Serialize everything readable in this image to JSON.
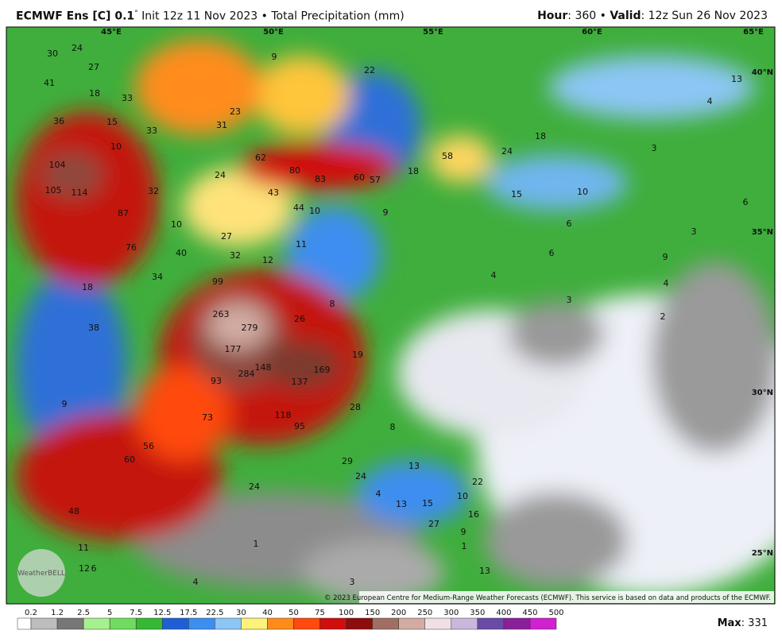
{
  "header": {
    "model": "ECMWF Ens [C] 0.1",
    "degree": "°",
    "init": " Init 12z 11 Nov 2023 • Total Precipitation (mm)",
    "hour_label": "Hour",
    "hour": ": 360 • ",
    "valid_label": "Valid",
    "valid": ": 12z Sun 26 Nov 2023"
  },
  "longitudes": [
    "45°E",
    "50°E",
    "55°E",
    "60°E",
    "65°E"
  ],
  "latitudes": [
    "40°N",
    "35°N",
    "30°N",
    "25°N"
  ],
  "map_labels": [
    30,
    24,
    27,
    41,
    18,
    33,
    36,
    15,
    33,
    10,
    31,
    23,
    62,
    80,
    83,
    60,
    57,
    18,
    58,
    24,
    18,
    22,
    9,
    104,
    105,
    114,
    87,
    32,
    24,
    43,
    44,
    10,
    9,
    15,
    10,
    3,
    4,
    13,
    6,
    3,
    6,
    6,
    4,
    9,
    4,
    3,
    2,
    10,
    27,
    40,
    32,
    12,
    11,
    76,
    34,
    99,
    18,
    38,
    263,
    279,
    26,
    8,
    177,
    19,
    148,
    169,
    284,
    93,
    137,
    9,
    28,
    73,
    118,
    95,
    8,
    56,
    60,
    29,
    13,
    24,
    24,
    22,
    4,
    10,
    13,
    15,
    48,
    16,
    27,
    1,
    11,
    9,
    1,
    12,
    6,
    13,
    4,
    3
  ],
  "copyright": "© 2023 European Centre for Medium-Range Weather Forecasts (ECMWF). This service is based on data and products of the ECMWF.",
  "watermark": "WeatherBELL",
  "colorbar": {
    "ticks": [
      0.2,
      1.2,
      2.5,
      5,
      7.5,
      12.5,
      17.5,
      22.5,
      30,
      40,
      50,
      75,
      100,
      150,
      200,
      250,
      300,
      350,
      400,
      450,
      500
    ],
    "colors": [
      "#ffffff",
      "#bdbdbd",
      "#9a9a9a",
      "#777777",
      "#a7f08f",
      "#6fdc5f",
      "#35b832",
      "#1b8f1b",
      "#1f5fd6",
      "#3c8ef0",
      "#8cc6f5",
      "#fff27a",
      "#ffc53a",
      "#ff8c1a",
      "#ff4a0f",
      "#d10e0e",
      "#8e0c0c",
      "#6b3a2d",
      "#a06e62",
      "#d2aca3",
      "#f0e0e6",
      "#c8b8dc",
      "#9080c0",
      "#6a4aa8",
      "#8a1f9a",
      "#d020d0"
    ]
  },
  "max_label": "Max",
  "max": ": 331"
}
